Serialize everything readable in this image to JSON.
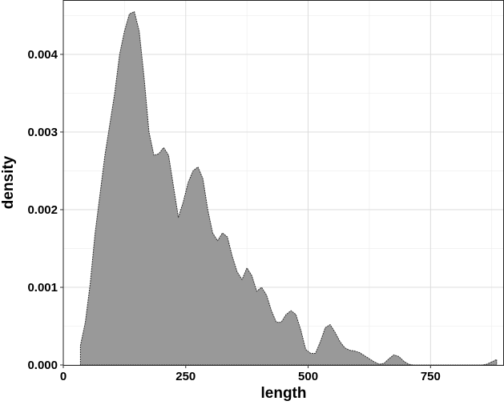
{
  "chart_data": {
    "type": "area",
    "subtype": "density",
    "title": "",
    "xlabel": "length",
    "ylabel": "density",
    "xlim": [
      0,
      900
    ],
    "ylim": [
      0,
      0.0047
    ],
    "x_ticks": [
      0,
      250,
      500,
      750
    ],
    "x_tick_labels": [
      "0",
      "250",
      "500",
      "750"
    ],
    "y_ticks": [
      0,
      0.001,
      0.002,
      0.003,
      0.004
    ],
    "y_tick_labels": [
      "0.000",
      "0.001",
      "0.002",
      "0.003",
      "0.004"
    ],
    "grid": true,
    "legend": "none",
    "colors": {
      "fill": "#999999",
      "outline": "#333333",
      "grid": "#d9d9d9",
      "background": "#ffffff"
    },
    "series": [
      {
        "x": [
          35,
          45,
          55,
          65,
          75,
          85,
          95,
          105,
          115,
          125,
          135,
          145,
          155,
          165,
          175,
          185,
          195,
          205,
          215,
          225,
          235,
          245,
          255,
          265,
          275,
          285,
          295,
          305,
          315,
          325,
          335,
          345,
          355,
          365,
          375,
          385,
          395,
          405,
          415,
          425,
          435,
          445,
          455,
          465,
          475,
          485,
          495,
          505,
          515,
          525,
          535,
          545,
          555,
          565,
          575,
          585,
          595,
          605,
          615,
          625,
          635,
          645,
          655,
          665,
          675,
          685,
          695,
          705,
          715,
          725,
          735,
          745,
          755,
          765,
          775,
          785,
          795,
          805,
          815,
          825,
          835,
          845,
          855,
          865,
          875,
          885
        ],
        "y": [
          0.00025,
          0.00055,
          0.00105,
          0.0017,
          0.0022,
          0.0027,
          0.0031,
          0.0035,
          0.004,
          0.0043,
          0.00452,
          0.00455,
          0.0043,
          0.0037,
          0.003,
          0.0027,
          0.00272,
          0.0028,
          0.0027,
          0.0023,
          0.0019,
          0.0021,
          0.00235,
          0.0025,
          0.00255,
          0.0024,
          0.002,
          0.0017,
          0.0016,
          0.0017,
          0.00165,
          0.0014,
          0.0012,
          0.0011,
          0.00125,
          0.00115,
          0.00095,
          0.001,
          0.0009,
          0.0007,
          0.00055,
          0.00055,
          0.00065,
          0.0007,
          0.00065,
          0.00045,
          0.0002,
          0.00015,
          0.00015,
          0.0003,
          0.00048,
          0.00052,
          0.00042,
          0.0003,
          0.00022,
          0.00019,
          0.00018,
          0.00016,
          0.00012,
          8e-05,
          4e-05,
          1e-05,
          2e-05,
          8e-05,
          0.00013,
          0.00011,
          5e-05,
          1e-05,
          0.0,
          0.0,
          0.0,
          0.0,
          0.0,
          0.0,
          0.0,
          0.0,
          0.0,
          0.0,
          0.0,
          0.0,
          0.0,
          0.0,
          0.0,
          1e-05,
          4e-05,
          7e-05
        ]
      }
    ]
  }
}
